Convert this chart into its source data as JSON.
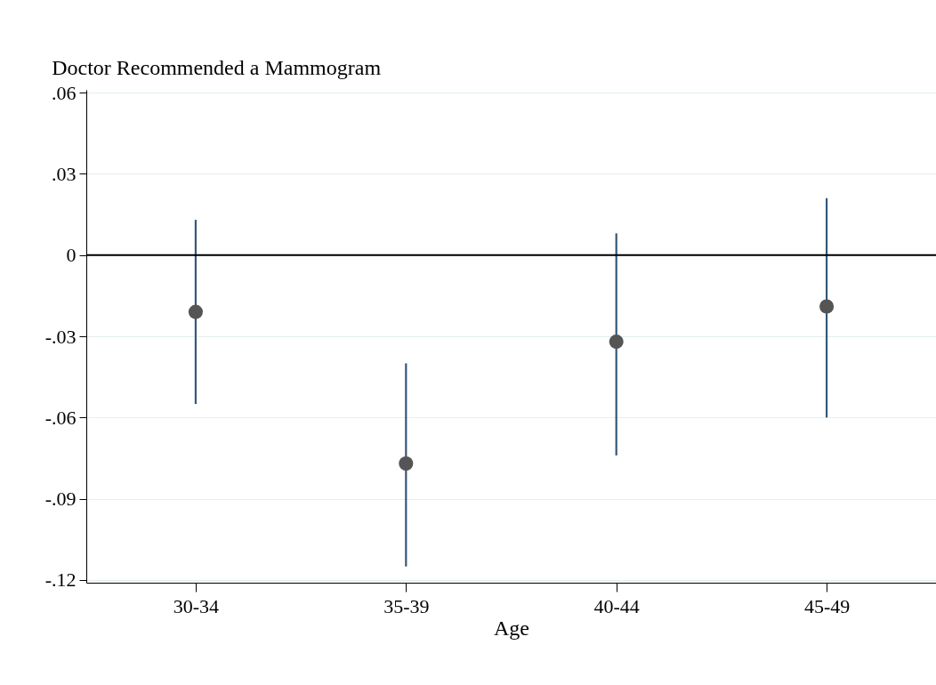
{
  "chart_data": {
    "type": "scatter",
    "title": "Doctor Recommended a Mammogram",
    "xlabel": "Age",
    "categories": [
      "30-34",
      "35-39",
      "40-44",
      "45-49"
    ],
    "series": [
      {
        "color": "#555555",
        "values": [
          -0.021,
          -0.077,
          -0.032,
          -0.019
        ],
        "errors": [
          [
            -0.055,
            0.013
          ],
          [
            -0.115,
            -0.04
          ],
          [
            -0.074,
            0.008
          ],
          [
            -0.06,
            0.021
          ]
        ]
      }
    ],
    "ylim": [
      -0.121,
      0.061
    ],
    "yticks": [
      {
        "value": -0.12,
        "label": "-.12"
      },
      {
        "value": -0.09,
        "label": "-.09"
      },
      {
        "value": -0.06,
        "label": "-.06"
      },
      {
        "value": -0.03,
        "label": "-.03"
      },
      {
        "value": 0,
        "label": "0"
      },
      {
        "value": 0.03,
        "label": ".03"
      },
      {
        "value": 0.06,
        "label": ".06"
      }
    ],
    "ref_lines": [
      {
        "axis": "y",
        "value": 0,
        "color": "#000000"
      }
    ],
    "grid": "y",
    "marker": "circle"
  }
}
